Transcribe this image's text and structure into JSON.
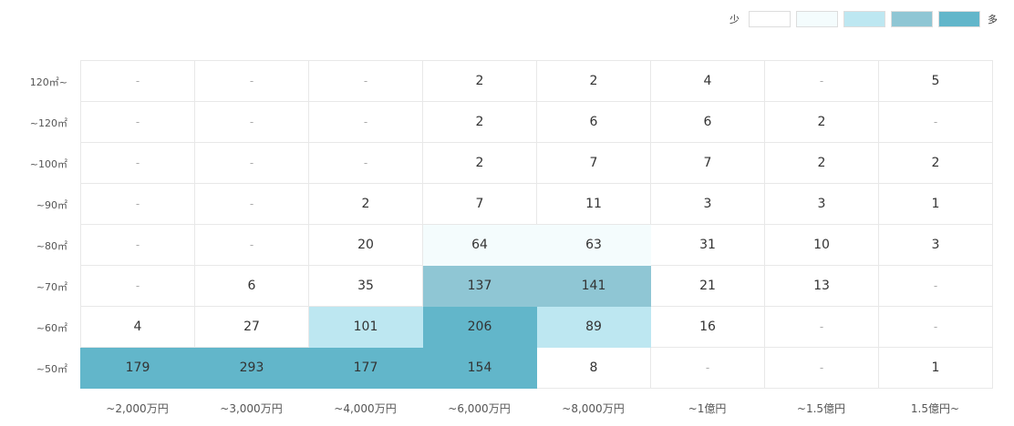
{
  "chart_data": {
    "type": "heatmap",
    "legend": {
      "low_label": "少",
      "high_label": "多",
      "colors": [
        "#ffffff",
        "#f4fcfd",
        "#bde7f1",
        "#8fc6d4",
        "#62b6ca"
      ]
    },
    "x_categories": [
      "~2,000万円",
      "~3,000万円",
      "~4,000万円",
      "~6,000万円",
      "~8,000万円",
      "~1億円",
      "~1.5億円",
      "1.5億円~"
    ],
    "y_categories": [
      "120㎡~",
      "~120㎡",
      "~100㎡",
      "~90㎡",
      "~80㎡",
      "~70㎡",
      "~60㎡",
      "~50㎡"
    ],
    "values": [
      [
        "-",
        "-",
        "-",
        "2",
        "2",
        "4",
        "-",
        "5"
      ],
      [
        "-",
        "-",
        "-",
        "2",
        "6",
        "6",
        "2",
        "-"
      ],
      [
        "-",
        "-",
        "-",
        "2",
        "7",
        "7",
        "2",
        "2"
      ],
      [
        "-",
        "-",
        "2",
        "7",
        "11",
        "3",
        "3",
        "1"
      ],
      [
        "-",
        "-",
        "20",
        "64",
        "63",
        "31",
        "10",
        "3"
      ],
      [
        "-",
        "6",
        "35",
        "137",
        "141",
        "21",
        "13",
        "-"
      ],
      [
        "4",
        "27",
        "101",
        "206",
        "89",
        "16",
        "-",
        "-"
      ],
      [
        "179",
        "293",
        "177",
        "154",
        "8",
        "-",
        "-",
        "1"
      ]
    ],
    "levels": [
      [
        0,
        0,
        0,
        0,
        0,
        0,
        0,
        0
      ],
      [
        0,
        0,
        0,
        0,
        0,
        0,
        0,
        0
      ],
      [
        0,
        0,
        0,
        0,
        0,
        0,
        0,
        0
      ],
      [
        0,
        0,
        0,
        0,
        0,
        0,
        0,
        0
      ],
      [
        0,
        0,
        0,
        1,
        1,
        0,
        0,
        0
      ],
      [
        0,
        0,
        0,
        3,
        3,
        0,
        0,
        0
      ],
      [
        0,
        0,
        2,
        4,
        2,
        0,
        0,
        0
      ],
      [
        4,
        4,
        4,
        4,
        0,
        0,
        0,
        0
      ]
    ]
  }
}
